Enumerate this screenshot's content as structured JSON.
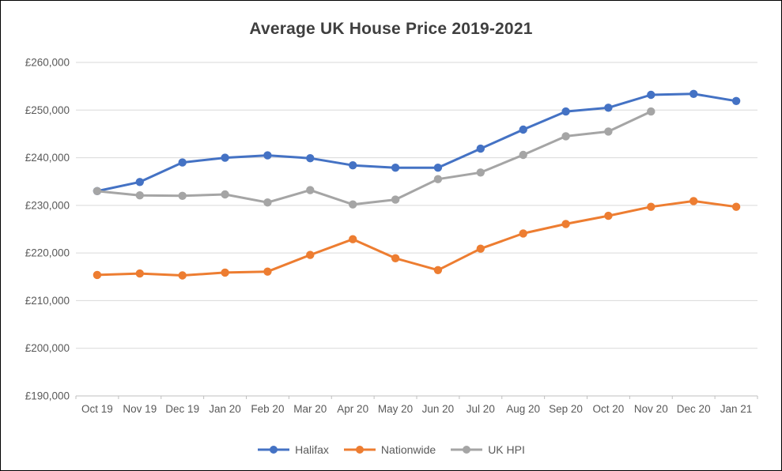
{
  "chart": {
    "title": "Average UK House Price 2019-2021"
  },
  "chart_data": {
    "type": "line",
    "title": "Average UK House Price 2019-2021",
    "categories": [
      "Oct 19",
      "Nov 19",
      "Dec 19",
      "Jan 20",
      "Feb 20",
      "Mar 20",
      "Apr 20",
      "May 20",
      "Jun 20",
      "Jul 20",
      "Aug 20",
      "Sep 20",
      "Oct 20",
      "Nov 20",
      "Dec 20",
      "Jan 21"
    ],
    "series": [
      {
        "name": "Halifax",
        "color": "#4472C4",
        "values": [
          233000,
          234900,
          239000,
          240000,
          240500,
          239900,
          238400,
          237900,
          237900,
          241900,
          245900,
          249700,
          250500,
          253200,
          253400,
          251900
        ]
      },
      {
        "name": "Nationwide",
        "color": "#ED7D31",
        "values": [
          215400,
          215700,
          215300,
          215900,
          216100,
          219600,
          222900,
          218900,
          216400,
          220900,
          224100,
          226100,
          227800,
          229700,
          230900,
          229700
        ]
      },
      {
        "name": "UK HPI",
        "color": "#A5A5A5",
        "values": [
          233000,
          232100,
          232000,
          232300,
          230600,
          233200,
          230200,
          231200,
          235500,
          236900,
          240600,
          244500,
          245500,
          249700,
          null,
          null
        ]
      }
    ],
    "ylim": [
      190000,
      260000
    ],
    "ytick_step": 10000,
    "ytick_prefix": "£",
    "grid": true,
    "legend_position": "bottom",
    "axis_color": "#bfbfbf",
    "grid_color": "#d9d9d9",
    "tick_label_color": "#595959"
  }
}
